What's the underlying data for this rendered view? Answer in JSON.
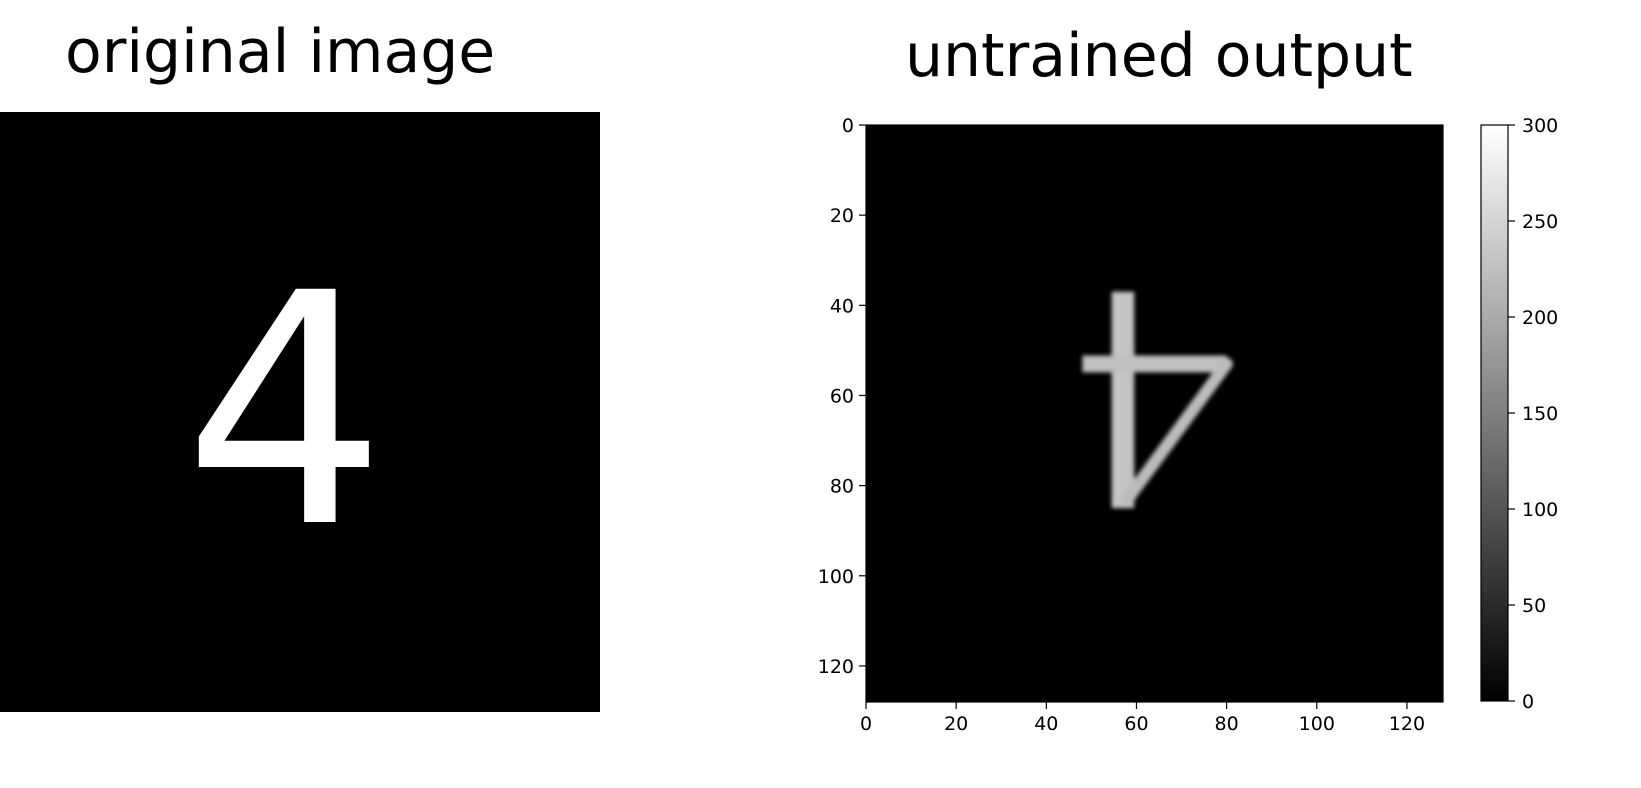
{
  "left_panel": {
    "title": "original image",
    "digit": "4"
  },
  "right_panel": {
    "title": "untrained output"
  },
  "chart_data": {
    "type": "heatmap",
    "title": "untrained output",
    "xlabel": "",
    "ylabel": "",
    "x_range": [
      0,
      128
    ],
    "y_range": [
      0,
      128
    ],
    "y_inverted": true,
    "x_ticks": [
      0,
      20,
      40,
      60,
      80,
      100,
      120
    ],
    "y_ticks": [
      0,
      20,
      40,
      60,
      80,
      100,
      120
    ],
    "colormap": "gray",
    "background_value": 0,
    "colorbar": {
      "range": [
        0,
        300
      ],
      "ticks": [
        0,
        50,
        100,
        150,
        200,
        250,
        300
      ],
      "placement": "right"
    },
    "shape_description": "inverted digit 4",
    "strokes": [
      {
        "kind": "vertical",
        "x": 57,
        "y_start": 37,
        "y_end": 85,
        "value": 230
      },
      {
        "kind": "horizontal",
        "y": 53,
        "x_start": 48,
        "x_end": 80,
        "value": 225
      },
      {
        "kind": "diagonal",
        "from": [
          80,
          53
        ],
        "to": [
          58,
          83
        ],
        "value": 220
      }
    ],
    "grid": false
  }
}
